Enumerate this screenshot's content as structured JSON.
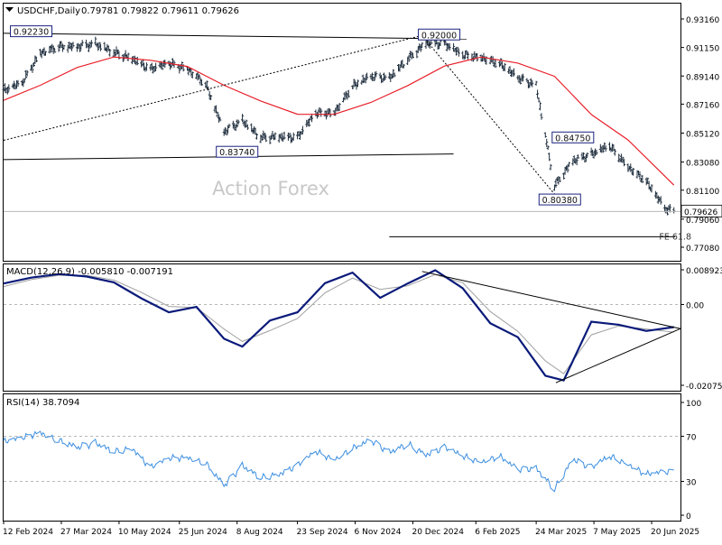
{
  "chart_data": [
    {
      "type": "candlestick",
      "pane": "price",
      "title": "USDCHF,Daily",
      "ohlc_readout": "0.79781 0.79822 0.79611 0.79626",
      "last_price_label": "0.79626",
      "watermark": "Action Forex",
      "ylim": [
        0.7708,
        0.9316
      ],
      "y_ticks": [
        "0.93160",
        "0.91150",
        "0.89140",
        "0.87160",
        "0.85120",
        "0.83080",
        "0.81100",
        "0.79060",
        "0.77080"
      ],
      "y_tick_values": [
        0.9316,
        0.9115,
        0.8914,
        0.8716,
        0.8512,
        0.8308,
        0.811,
        0.7906,
        0.7708
      ],
      "annotations": [
        {
          "text": "0.92230",
          "x": "2024-03-04",
          "y": 0.9223
        },
        {
          "text": "0.92000",
          "x": "2025-01-09",
          "y": 0.92
        },
        {
          "text": "0.83740",
          "x": "2024-08-08",
          "y": 0.8374
        },
        {
          "text": "0.84750",
          "x": "2025-04-21",
          "y": 0.8475
        },
        {
          "text": "0.80380",
          "x": "2025-04-11",
          "y": 0.8038
        },
        {
          "text": "FE 61.8",
          "x": "2025-07-08",
          "y": 0.7782
        }
      ],
      "series": [
        {
          "kind": "close",
          "x": [
            "2024-02-12",
            "2024-02-26",
            "2024-03-11",
            "2024-03-25",
            "2024-04-08",
            "2024-04-22",
            "2024-05-06",
            "2024-05-20",
            "2024-06-03",
            "2024-06-17",
            "2024-07-01",
            "2024-07-15",
            "2024-07-29",
            "2024-08-12",
            "2024-08-26",
            "2024-09-09",
            "2024-09-23",
            "2024-10-07",
            "2024-10-21",
            "2024-11-04",
            "2024-11-18",
            "2024-12-02",
            "2024-12-16",
            "2024-12-30",
            "2025-01-13",
            "2025-01-27",
            "2025-02-10",
            "2025-02-24",
            "2025-03-10",
            "2025-03-24",
            "2025-04-07",
            "2025-04-21",
            "2025-05-05",
            "2025-05-19",
            "2025-06-02",
            "2025-06-16",
            "2025-06-30",
            "2025-07-07"
          ],
          "y": [
            0.881,
            0.886,
            0.908,
            0.912,
            0.912,
            0.914,
            0.908,
            0.904,
            0.896,
            0.9,
            0.897,
            0.886,
            0.852,
            0.86,
            0.848,
            0.849,
            0.848,
            0.865,
            0.866,
            0.884,
            0.891,
            0.89,
            0.903,
            0.915,
            0.914,
            0.906,
            0.905,
            0.9,
            0.89,
            0.885,
            0.814,
            0.832,
            0.836,
            0.842,
            0.828,
            0.817,
            0.798,
            0.796
          ]
        },
        {
          "kind": "moving_average",
          "x": [
            "2024-02-12",
            "2024-03-11",
            "2024-04-08",
            "2024-05-06",
            "2024-06-03",
            "2024-07-01",
            "2024-07-29",
            "2024-08-26",
            "2024-09-23",
            "2024-10-21",
            "2024-11-18",
            "2024-12-16",
            "2025-01-13",
            "2025-02-10",
            "2025-03-10",
            "2025-04-07",
            "2025-05-05",
            "2025-06-02",
            "2025-07-07"
          ],
          "y": [
            0.8743,
            0.8849,
            0.8974,
            0.9048,
            0.9025,
            0.8982,
            0.8849,
            0.8738,
            0.8645,
            0.8644,
            0.8728,
            0.8846,
            0.8984,
            0.9048,
            0.9005,
            0.8912,
            0.8643,
            0.8464,
            0.8145
          ]
        }
      ],
      "lines": [
        {
          "from": {
            "x": "2024-02-12",
            "y": 0.9215
          },
          "to": {
            "x": "2025-01-30",
            "y": 0.9175
          }
        },
        {
          "from": {
            "x": "2024-02-12",
            "y": 0.8325
          },
          "to": {
            "x": "2025-01-20",
            "y": 0.8365
          }
        },
        {
          "from": {
            "x": "2024-02-12",
            "y": 0.8461
          },
          "to": {
            "x": "2024-12-27",
            "y": 0.92
          },
          "dash": true
        },
        {
          "from": {
            "x": "2024-12-27",
            "y": 0.92
          },
          "to": {
            "x": "2025-04-11",
            "y": 0.8038
          },
          "dash": true
        },
        {
          "from": {
            "x": "2024-12-02",
            "y": 0.7782
          },
          "to": {
            "x": "2025-07-08",
            "y": 0.7782
          }
        }
      ]
    },
    {
      "type": "line",
      "pane": "macd",
      "title": "MACD(12,26,9) -0.005810 -0.007191",
      "ylim": [
        -0.020759,
        0.008923
      ],
      "y_ticks": [
        "0.008923",
        "0.00",
        "-0.020759"
      ],
      "y_tick_values": [
        0.008923,
        0.0,
        -0.020759
      ],
      "zero_line": true,
      "series": [
        {
          "kind": "macd",
          "x": [
            "2024-02-12",
            "2024-03-04",
            "2024-03-25",
            "2024-04-15",
            "2024-05-06",
            "2024-05-27",
            "2024-06-17",
            "2024-07-08",
            "2024-07-29",
            "2024-08-12",
            "2024-09-02",
            "2024-09-23",
            "2024-10-14",
            "2024-11-04",
            "2024-11-25",
            "2024-12-16",
            "2025-01-06",
            "2025-01-27",
            "2025-02-17",
            "2025-03-10",
            "2025-03-31",
            "2025-04-14",
            "2025-05-05",
            "2025-05-26",
            "2025-06-16",
            "2025-07-07"
          ],
          "y": [
            0.0054,
            0.0069,
            0.0078,
            0.0072,
            0.0057,
            0.0016,
            -0.002,
            -0.0006,
            -0.0088,
            -0.0108,
            -0.0041,
            -0.002,
            0.0055,
            0.0082,
            0.0017,
            0.0054,
            0.0088,
            0.0042,
            -0.0048,
            -0.0084,
            -0.0183,
            -0.0195,
            -0.0044,
            -0.0052,
            -0.0068,
            -0.0058
          ]
        },
        {
          "kind": "signal",
          "x": [
            "2024-02-12",
            "2024-03-04",
            "2024-03-25",
            "2024-04-15",
            "2024-05-06",
            "2024-05-27",
            "2024-06-17",
            "2024-07-08",
            "2024-07-29",
            "2024-08-12",
            "2024-09-02",
            "2024-09-23",
            "2024-10-14",
            "2024-11-04",
            "2024-11-25",
            "2024-12-16",
            "2025-01-06",
            "2025-01-27",
            "2025-02-17",
            "2025-03-10",
            "2025-03-31",
            "2025-04-14",
            "2025-05-05",
            "2025-05-26",
            "2025-06-16",
            "2025-07-07"
          ],
          "y": [
            0.0046,
            0.0064,
            0.0075,
            0.0075,
            0.0063,
            0.0031,
            -0.0005,
            -0.0008,
            -0.0063,
            -0.0095,
            -0.0067,
            -0.0036,
            0.003,
            0.0068,
            0.0039,
            0.0048,
            0.0077,
            0.0056,
            -0.0018,
            -0.0069,
            -0.0145,
            -0.0178,
            -0.0078,
            -0.0055,
            -0.0063,
            -0.0071
          ]
        }
      ],
      "lines": [
        {
          "from": {
            "x": "2024-12-27",
            "y": 0.0085
          },
          "to": {
            "x": "2025-07-12",
            "y": -0.0062
          }
        },
        {
          "from": {
            "x": "2025-04-08",
            "y": -0.0201
          },
          "to": {
            "x": "2025-07-12",
            "y": -0.0062
          }
        }
      ]
    },
    {
      "type": "line",
      "pane": "rsi",
      "title": "RSI(14) 38.7094",
      "ylim": [
        0,
        100
      ],
      "y_ticks": [
        "100",
        "70",
        "30",
        "0"
      ],
      "y_tick_values": [
        100,
        70,
        30,
        0
      ],
      "levels": [
        70,
        30
      ],
      "series": [
        {
          "kind": "rsi",
          "x": [
            "2024-02-12",
            "2024-02-26",
            "2024-03-11",
            "2024-03-25",
            "2024-04-08",
            "2024-04-22",
            "2024-05-06",
            "2024-05-20",
            "2024-06-03",
            "2024-06-17",
            "2024-07-01",
            "2024-07-15",
            "2024-07-29",
            "2024-08-12",
            "2024-08-26",
            "2024-09-09",
            "2024-09-23",
            "2024-10-07",
            "2024-10-21",
            "2024-11-04",
            "2024-11-18",
            "2024-12-02",
            "2024-12-16",
            "2024-12-30",
            "2025-01-13",
            "2025-01-27",
            "2025-02-10",
            "2025-02-24",
            "2025-03-10",
            "2025-03-24",
            "2025-04-07",
            "2025-04-21",
            "2025-05-05",
            "2025-05-19",
            "2025-06-02",
            "2025-06-16",
            "2025-06-30",
            "2025-07-07"
          ],
          "y": [
            65,
            68,
            74,
            66,
            60,
            64,
            56,
            60,
            42,
            50,
            52,
            46,
            26,
            44,
            33,
            37,
            44,
            56,
            50,
            59,
            66,
            56,
            63,
            54,
            60,
            52,
            48,
            52,
            40,
            42,
            23,
            50,
            42,
            52,
            46,
            36,
            38,
            38.7
          ]
        }
      ]
    }
  ],
  "x_axis": {
    "ticks": [
      {
        "label": "12 Feb 2024",
        "date": "2024-02-12"
      },
      {
        "label": "27 Mar 2024",
        "date": "2024-03-27"
      },
      {
        "label": "10 May 2024",
        "date": "2024-05-10"
      },
      {
        "label": "25 Jun 2024",
        "date": "2024-06-25"
      },
      {
        "label": "8 Aug 2024",
        "date": "2024-08-08"
      },
      {
        "label": "23 Sep 2024",
        "date": "2024-09-23"
      },
      {
        "label": "6 Nov 2024",
        "date": "2024-11-06"
      },
      {
        "label": "20 Dec 2024",
        "date": "2024-12-20"
      },
      {
        "label": "6 Feb 2025",
        "date": "2025-02-06"
      },
      {
        "label": "24 Mar 2025",
        "date": "2025-03-24"
      },
      {
        "label": "7 May 2025",
        "date": "2025-05-07"
      },
      {
        "label": "20 Jun 2025",
        "date": "2025-06-20"
      }
    ]
  },
  "colors": {
    "background": "#ffffff",
    "price_bars": "#1e2d3d",
    "moving_average": "#e8202a",
    "macd_line": "#0a1a7a",
    "signal_line": "#a0a0a0",
    "rsi_line": "#3d8fe0",
    "trendlines": "#000000",
    "level_lines": "#b8b8b8",
    "label_border": "#1a237e",
    "watermark": "#c8c8c8"
  },
  "icons": {
    "chart_menu": "chart-menu-triangle-icon"
  }
}
